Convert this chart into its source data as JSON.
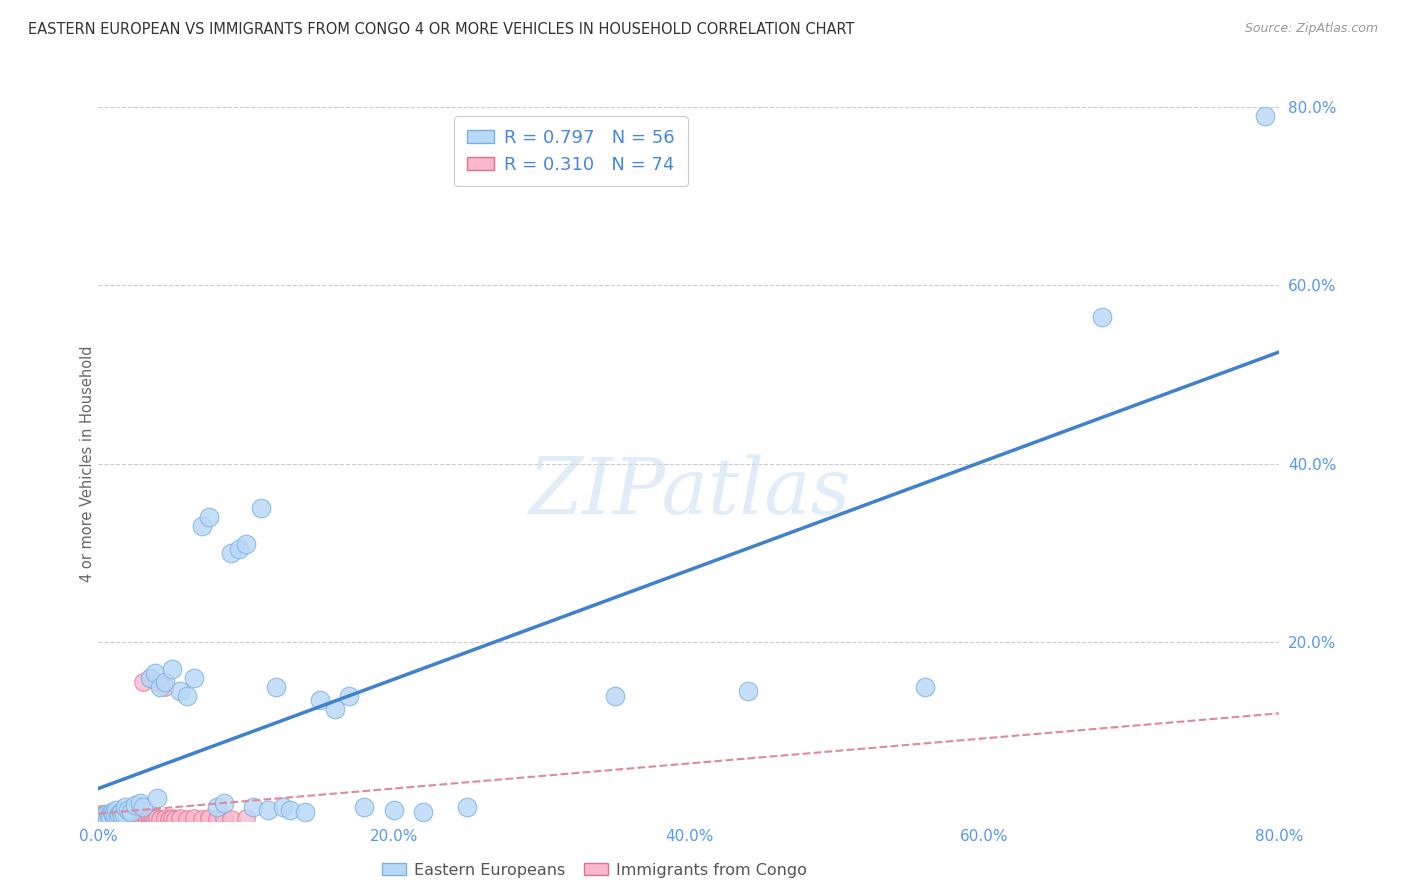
{
  "title": "EASTERN EUROPEAN VS IMMIGRANTS FROM CONGO 4 OR MORE VEHICLES IN HOUSEHOLD CORRELATION CHART",
  "source": "Source: ZipAtlas.com",
  "ylabel": "4 or more Vehicles in Household",
  "xlim": [
    0.0,
    0.8
  ],
  "ylim": [
    0.0,
    0.8
  ],
  "xtick_labels": [
    "0.0%",
    "20.0%",
    "40.0%",
    "60.0%",
    "80.0%"
  ],
  "xtick_vals": [
    0.0,
    0.2,
    0.4,
    0.6,
    0.8
  ],
  "ytick_labels": [
    "20.0%",
    "40.0%",
    "60.0%",
    "80.0%"
  ],
  "ytick_vals": [
    0.2,
    0.4,
    0.6,
    0.8
  ],
  "legend_label1": "R = 0.797   N = 56",
  "legend_label2": "R = 0.310   N = 74",
  "legend_label_eastern": "Eastern Europeans",
  "legend_label_congo": "Immigrants from Congo",
  "scatter_color_eastern": "#b8d8f8",
  "scatter_edge_eastern": "#7ab0e0",
  "scatter_color_congo": "#f9b8cb",
  "scatter_edge_congo": "#e07090",
  "line_color_eastern": "#4080cc",
  "line_color_congo": "#e08898",
  "watermark": "ZIPatlas",
  "tick_label_color": "#5599ee",
  "background_color": "#ffffff",
  "eastern_x": [
    0.003,
    0.004,
    0.005,
    0.006,
    0.007,
    0.008,
    0.009,
    0.01,
    0.011,
    0.012,
    0.013,
    0.014,
    0.015,
    0.016,
    0.017,
    0.018,
    0.02,
    0.022,
    0.025,
    0.028,
    0.03,
    0.035,
    0.038,
    0.04,
    0.042,
    0.045,
    0.05,
    0.055,
    0.06,
    0.065,
    0.07,
    0.075,
    0.08,
    0.085,
    0.09,
    0.095,
    0.1,
    0.105,
    0.11,
    0.115,
    0.12,
    0.125,
    0.13,
    0.14,
    0.15,
    0.16,
    0.17,
    0.18,
    0.2,
    0.22,
    0.25,
    0.35,
    0.44,
    0.56,
    0.68,
    0.79
  ],
  "eastern_y": [
    0.005,
    0.003,
    0.008,
    0.002,
    0.006,
    0.004,
    0.01,
    0.008,
    0.005,
    0.012,
    0.003,
    0.007,
    0.01,
    0.005,
    0.008,
    0.015,
    0.012,
    0.01,
    0.018,
    0.02,
    0.015,
    0.16,
    0.165,
    0.025,
    0.15,
    0.155,
    0.17,
    0.145,
    0.14,
    0.16,
    0.33,
    0.34,
    0.015,
    0.02,
    0.3,
    0.305,
    0.31,
    0.015,
    0.35,
    0.012,
    0.15,
    0.015,
    0.012,
    0.01,
    0.135,
    0.125,
    0.14,
    0.015,
    0.012,
    0.01,
    0.015,
    0.14,
    0.145,
    0.15,
    0.565,
    0.79
  ],
  "congo_x": [
    0.001,
    0.001,
    0.002,
    0.002,
    0.002,
    0.003,
    0.003,
    0.003,
    0.004,
    0.004,
    0.004,
    0.005,
    0.005,
    0.005,
    0.006,
    0.006,
    0.007,
    0.007,
    0.008,
    0.008,
    0.009,
    0.009,
    0.01,
    0.01,
    0.011,
    0.011,
    0.012,
    0.013,
    0.013,
    0.014,
    0.015,
    0.015,
    0.016,
    0.017,
    0.018,
    0.019,
    0.02,
    0.021,
    0.022,
    0.023,
    0.024,
    0.025,
    0.026,
    0.027,
    0.028,
    0.029,
    0.03,
    0.031,
    0.032,
    0.033,
    0.034,
    0.035,
    0.036,
    0.037,
    0.038,
    0.04,
    0.042,
    0.045,
    0.048,
    0.05,
    0.052,
    0.055,
    0.06,
    0.065,
    0.07,
    0.075,
    0.08,
    0.085,
    0.09,
    0.1,
    0.03,
    0.035,
    0.04,
    0.045
  ],
  "congo_y": [
    0.002,
    0.004,
    0.003,
    0.005,
    0.007,
    0.002,
    0.004,
    0.006,
    0.003,
    0.005,
    0.008,
    0.002,
    0.004,
    0.006,
    0.003,
    0.007,
    0.002,
    0.005,
    0.003,
    0.007,
    0.002,
    0.006,
    0.003,
    0.008,
    0.002,
    0.005,
    0.003,
    0.002,
    0.006,
    0.003,
    0.002,
    0.005,
    0.003,
    0.002,
    0.004,
    0.002,
    0.003,
    0.002,
    0.004,
    0.002,
    0.003,
    0.002,
    0.004,
    0.002,
    0.003,
    0.002,
    0.004,
    0.002,
    0.003,
    0.002,
    0.004,
    0.003,
    0.002,
    0.003,
    0.002,
    0.003,
    0.002,
    0.003,
    0.002,
    0.003,
    0.002,
    0.003,
    0.002,
    0.003,
    0.002,
    0.003,
    0.002,
    0.003,
    0.002,
    0.003,
    0.155,
    0.16,
    0.155,
    0.15
  ]
}
